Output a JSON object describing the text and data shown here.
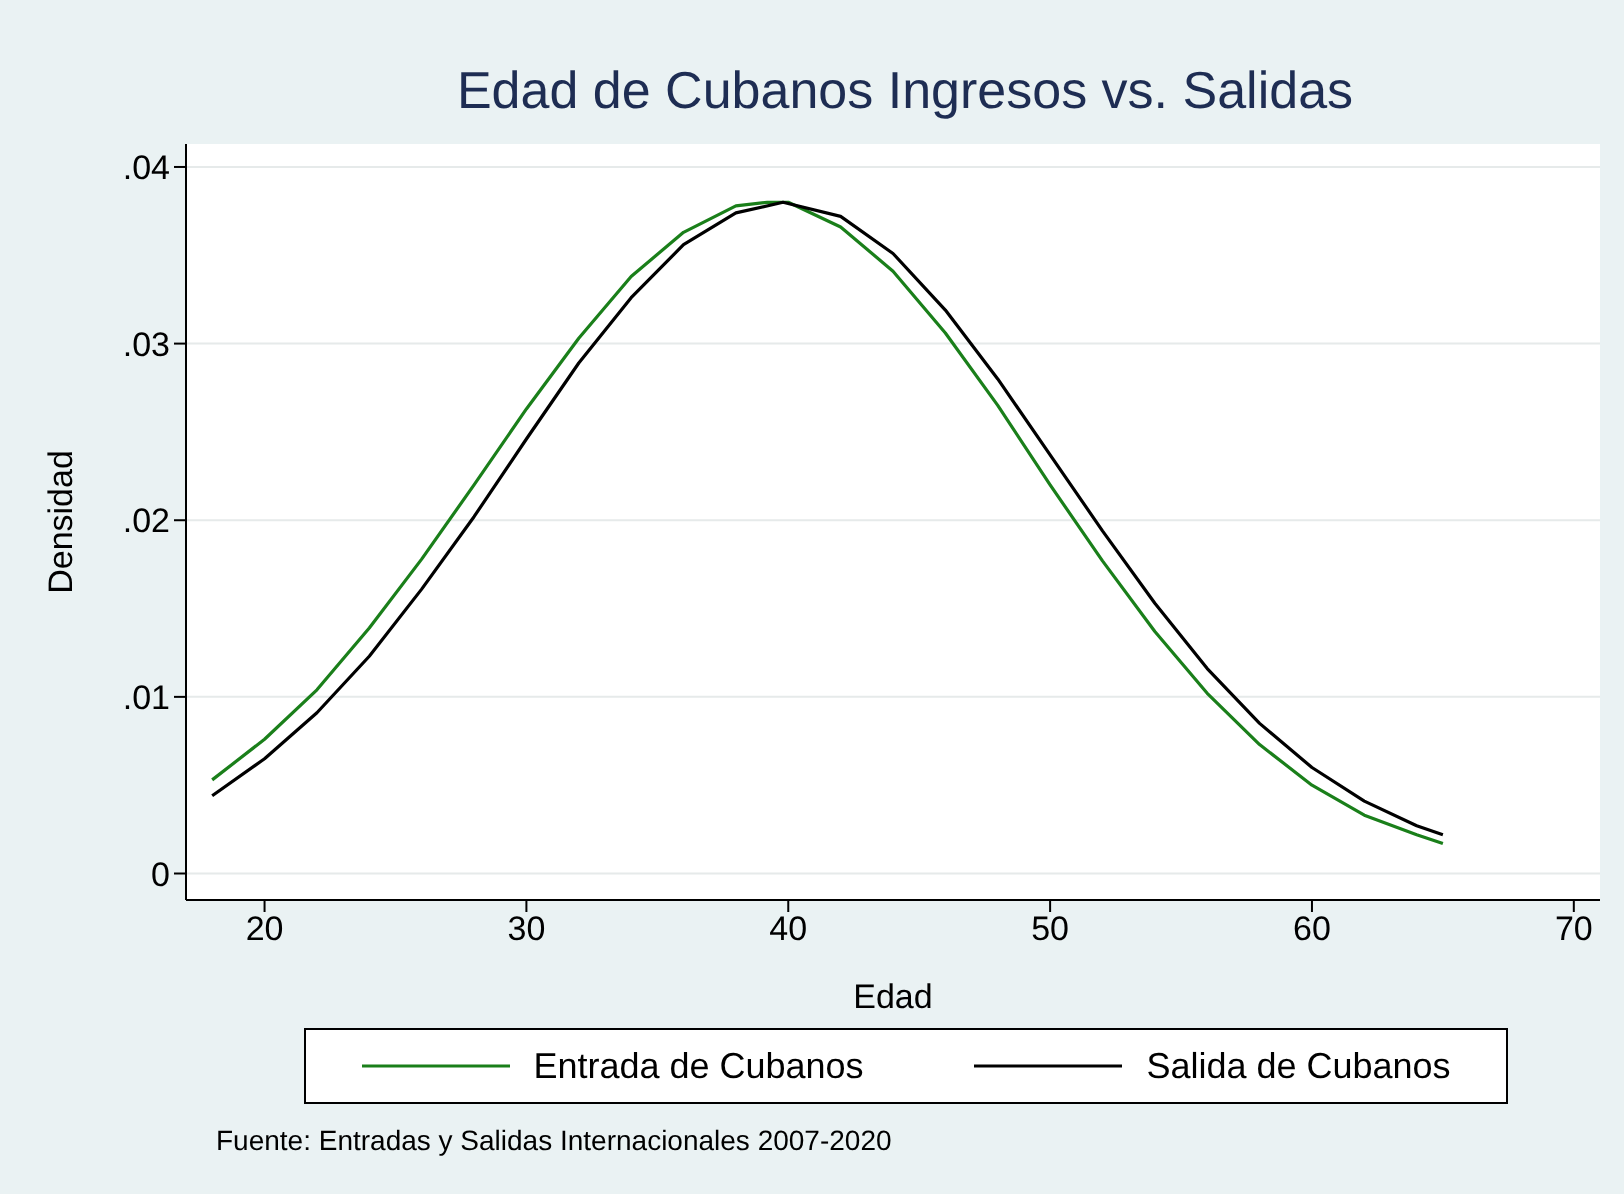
{
  "chart_data": {
    "type": "line",
    "title": "Edad de Cubanos Ingresos vs. Salidas",
    "xlabel": "Edad",
    "ylabel": "Densidad",
    "annotations": [
      "Fuente: Entradas y Salidas Internacionales  2007-2020"
    ],
    "series": [
      {
        "name": "Entrada de Cubanos",
        "color": "#1a7f1a",
        "x": [
          18,
          20,
          22,
          24,
          26,
          28,
          30,
          32,
          34,
          36,
          38,
          39.2,
          40,
          42,
          44,
          46,
          48,
          50,
          52,
          54,
          56,
          58,
          60,
          62,
          64,
          65
        ],
        "values": [
          0.0053,
          0.0076,
          0.0104,
          0.0139,
          0.0178,
          0.022,
          0.0263,
          0.0303,
          0.0338,
          0.0363,
          0.0378,
          0.038,
          0.038,
          0.0366,
          0.0341,
          0.0306,
          0.0265,
          0.022,
          0.0177,
          0.0137,
          0.0102,
          0.0073,
          0.005,
          0.0033,
          0.0022,
          0.0017
        ]
      },
      {
        "name": "Salida de Cubanos",
        "color": "#000000",
        "x": [
          18,
          20,
          22,
          24,
          26,
          28,
          30,
          32,
          34,
          36,
          38,
          39.8,
          42,
          44,
          46,
          48,
          50,
          52,
          54,
          56,
          58,
          60,
          62,
          64,
          65
        ],
        "values": [
          0.0044,
          0.0065,
          0.0091,
          0.0123,
          0.0161,
          0.0202,
          0.0246,
          0.0289,
          0.0326,
          0.0356,
          0.0374,
          0.038,
          0.0372,
          0.0351,
          0.0319,
          0.028,
          0.0237,
          0.0194,
          0.0153,
          0.0116,
          0.0085,
          0.006,
          0.0041,
          0.0027,
          0.0022
        ]
      }
    ],
    "xlim": [
      17,
      71
    ],
    "xticks": [
      20,
      30,
      40,
      50,
      60,
      70
    ],
    "ylim": [
      -0.0015,
      0.0413
    ],
    "yticks": [
      0,
      {
        "value": 0.01,
        "label": ".01"
      },
      {
        "value": 0.02,
        "label": ".02"
      },
      {
        "value": 0.03,
        "label": ".03"
      },
      {
        "value": 0.04,
        "label": ".04"
      }
    ],
    "grid": "y",
    "legend": "bottom",
    "marker": "none",
    "line_style": "solid"
  }
}
